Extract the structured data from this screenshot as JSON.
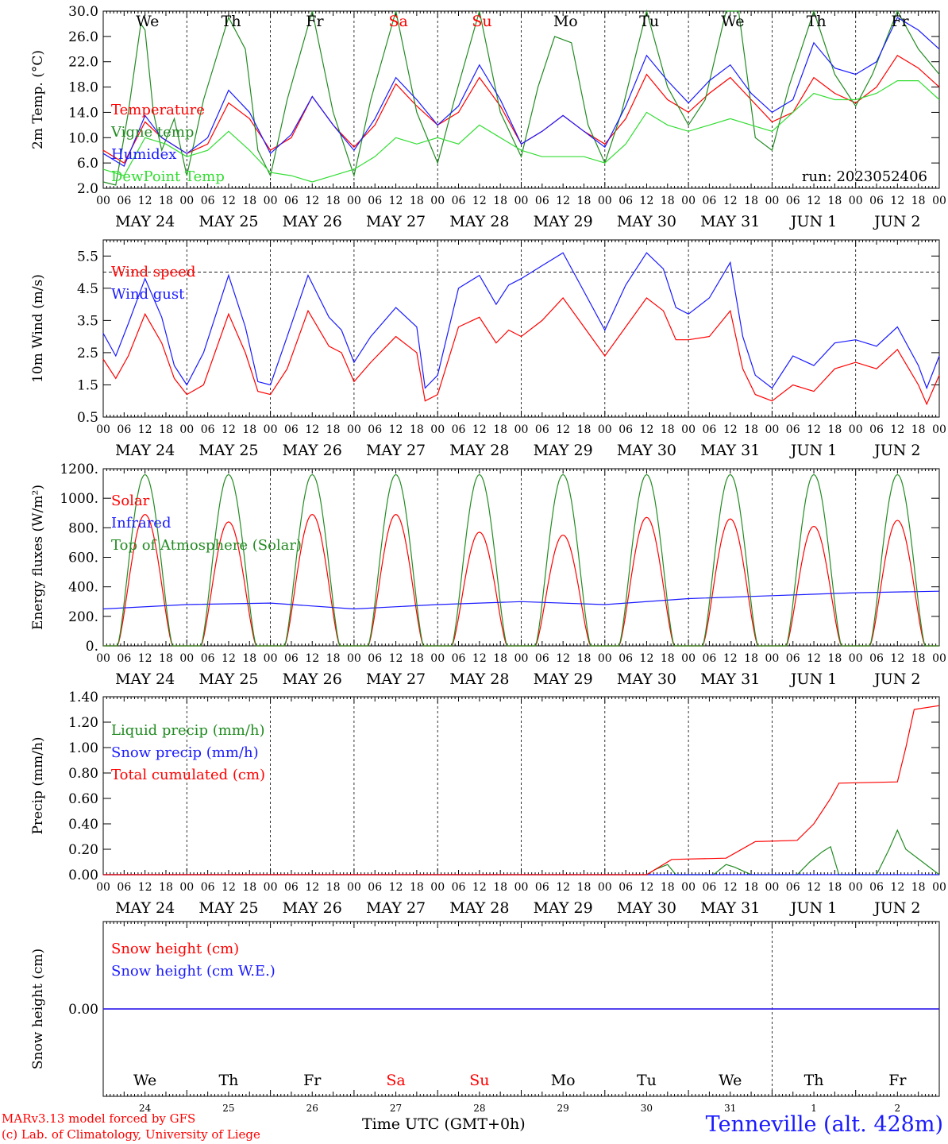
{
  "run_label": "run: 2023052406",
  "hour_ticks": [
    "00",
    "06",
    "12",
    "18"
  ],
  "dates": [
    "MAY 24",
    "MAY 25",
    "MAY 26",
    "MAY 27",
    "MAY 28",
    "MAY 29",
    "MAY 30",
    "MAY 31",
    "JUN  1",
    "JUN  2"
  ],
  "weekdays": [
    "We",
    "Th",
    "Fr",
    "Sa",
    "Su",
    "Mo",
    "Tu",
    "We",
    "Th",
    "Fr"
  ],
  "weekday_colors": [
    "#000000",
    "#000000",
    "#000000",
    "#ff0000",
    "#ff0000",
    "#000000",
    "#000000",
    "#000000",
    "#000000",
    "#000000"
  ],
  "day_numbers": [
    "24",
    "25",
    "26",
    "27",
    "28",
    "29",
    "30",
    "31",
    "1",
    "2"
  ],
  "colors": {
    "red": "#ff0000",
    "green": "#228b22",
    "blue": "#1a1aff",
    "lightgreen": "#33dd33",
    "purple": "#800080"
  },
  "footer": {
    "model_line1": "MARv3.13 model forced by GFS",
    "model_line2": "(c) Lab. of Climatology, University of Liege",
    "time_label": "Time UTC (GMT+0h)",
    "station": "Tenneville (alt. 428m)"
  },
  "chart_data": [
    {
      "type": "line",
      "ylabel": "2m Temp. (°C)",
      "ylim": [
        2,
        30
      ],
      "yticks": [
        "2.0",
        "6.0",
        "10.0",
        "14.0",
        "18.0",
        "22.0",
        "26.0",
        "30.0"
      ],
      "x_unit": "days since MAY 24 00 UTC",
      "series": [
        {
          "name": "Temperature",
          "color": "#ff0000",
          "x": [
            0,
            0.25,
            0.5,
            0.7,
            1,
            1.25,
            1.5,
            1.75,
            2,
            2.25,
            2.5,
            2.75,
            3,
            3.25,
            3.5,
            3.75,
            4,
            4.25,
            4.5,
            4.75,
            5,
            5.25,
            5.5,
            5.75,
            6,
            6.25,
            6.5,
            6.75,
            7,
            7.25,
            7.5,
            7.75,
            8,
            8.25,
            8.5,
            8.75,
            9,
            9.25,
            9.5,
            9.75,
            10
          ],
          "y": [
            8,
            6,
            12.5,
            10,
            7.5,
            9,
            15.5,
            13,
            8,
            10,
            16.5,
            12,
            8.5,
            12,
            18.5,
            15,
            12,
            14,
            19.5,
            15,
            9,
            11,
            13.5,
            11,
            9,
            13,
            20,
            16,
            14,
            17,
            19.5,
            16,
            12.5,
            14,
            19.5,
            17,
            15.5,
            18,
            23,
            21,
            18
          ]
        },
        {
          "name": "Vigne temp",
          "color": "#228b22",
          "x": [
            0,
            0.15,
            0.3,
            0.45,
            0.5,
            0.6,
            0.7,
            0.85,
            1,
            1.2,
            1.5,
            1.7,
            1.85,
            2,
            2.2,
            2.5,
            2.75,
            3,
            3.2,
            3.5,
            3.75,
            4,
            4.2,
            4.5,
            4.75,
            5,
            5.2,
            5.4,
            5.6,
            5.8,
            6,
            6.2,
            6.5,
            6.75,
            7,
            7.2,
            7.45,
            7.6,
            7.8,
            8,
            8.2,
            8.5,
            8.75,
            9,
            9.2,
            9.5,
            9.75,
            10
          ],
          "y": [
            3,
            2.5,
            14,
            28,
            27,
            14,
            8,
            13,
            4,
            16,
            29,
            24,
            8,
            4,
            16,
            30,
            14,
            4,
            16,
            30,
            14,
            6,
            16,
            30,
            14,
            7,
            18,
            26,
            25,
            12,
            6,
            14,
            30,
            18,
            12,
            16,
            30,
            30,
            10,
            8,
            18,
            30,
            20,
            15,
            20,
            30,
            24,
            20
          ]
        },
        {
          "name": "Humidex",
          "color": "#1a1aff",
          "x": [
            0,
            0.25,
            0.5,
            0.7,
            1,
            1.25,
            1.5,
            1.75,
            2,
            2.25,
            2.5,
            2.75,
            3,
            3.25,
            3.5,
            3.75,
            4,
            4.25,
            4.5,
            4.75,
            5,
            5.25,
            5.5,
            5.75,
            6,
            6.25,
            6.5,
            6.75,
            7,
            7.25,
            7.5,
            7.75,
            8,
            8.25,
            8.5,
            8.75,
            9,
            9.25,
            9.5,
            9.75,
            10
          ],
          "y": [
            7.5,
            5.5,
            13.5,
            10,
            7.5,
            10,
            17.5,
            14,
            7.5,
            10.5,
            16.5,
            12,
            8,
            13,
            19.5,
            16,
            12,
            15,
            21.5,
            16,
            9,
            11,
            13.5,
            11,
            8.5,
            15,
            23,
            19,
            15.5,
            19,
            21.5,
            17,
            14,
            16,
            25,
            21,
            20,
            22,
            29,
            27,
            24
          ]
        },
        {
          "name": "DewPoint Temp",
          "color": "#33dd33",
          "x": [
            0,
            0.25,
            0.5,
            0.75,
            1,
            1.25,
            1.5,
            1.75,
            2,
            2.25,
            2.5,
            2.75,
            3,
            3.25,
            3.5,
            3.75,
            4,
            4.25,
            4.5,
            4.75,
            5,
            5.25,
            5.5,
            5.75,
            6,
            6.25,
            6.5,
            6.75,
            7,
            7.25,
            7.5,
            7.75,
            8,
            8.25,
            8.5,
            8.75,
            9,
            9.25,
            9.5,
            9.75,
            10
          ],
          "y": [
            5,
            4,
            10,
            9,
            7,
            8,
            11,
            8,
            4.5,
            4,
            3,
            4,
            5,
            7,
            10,
            9,
            10,
            9,
            12,
            10,
            8,
            7,
            7,
            7,
            6,
            9,
            14,
            12,
            11,
            12,
            13,
            12,
            11,
            14,
            17,
            16,
            16,
            17,
            19,
            19,
            16
          ]
        }
      ]
    },
    {
      "type": "line",
      "ylabel": "10m Wind (m/s)",
      "ylim": [
        0.5,
        6
      ],
      "yticks": [
        "0.5",
        "1.5",
        "2.5",
        "3.5",
        "4.5",
        "5.5"
      ],
      "reference_line": 5,
      "series": [
        {
          "name": "Wind speed",
          "color": "#ff0000",
          "x": [
            0,
            0.15,
            0.3,
            0.5,
            0.7,
            0.85,
            1,
            1.2,
            1.5,
            1.7,
            1.85,
            2,
            2.2,
            2.45,
            2.7,
            2.85,
            3,
            3.2,
            3.5,
            3.75,
            3.85,
            4,
            4.25,
            4.5,
            4.7,
            4.85,
            5,
            5.25,
            5.5,
            5.75,
            6,
            6.25,
            6.5,
            6.7,
            6.85,
            7,
            7.25,
            7.5,
            7.65,
            7.8,
            8,
            8.25,
            8.5,
            8.75,
            9,
            9.25,
            9.5,
            9.75,
            9.85,
            10
          ],
          "y": [
            2.3,
            1.7,
            2.4,
            3.7,
            2.8,
            1.7,
            1.2,
            1.5,
            3.7,
            2.5,
            1.3,
            1.2,
            2.0,
            3.8,
            2.7,
            2.5,
            1.6,
            2.2,
            3.0,
            2.5,
            1.0,
            1.2,
            3.3,
            3.6,
            2.8,
            3.2,
            3.0,
            3.5,
            4.2,
            3.3,
            2.4,
            3.3,
            4.2,
            3.8,
            2.9,
            2.9,
            3.0,
            3.8,
            2.0,
            1.2,
            1.0,
            1.5,
            1.3,
            2.0,
            2.2,
            2.0,
            2.6,
            1.5,
            0.9,
            1.8
          ]
        },
        {
          "name": "Wind gust",
          "color": "#1a1aff",
          "x": [
            0,
            0.15,
            0.3,
            0.5,
            0.7,
            0.85,
            1,
            1.2,
            1.5,
            1.7,
            1.85,
            2,
            2.2,
            2.45,
            2.7,
            2.85,
            3,
            3.2,
            3.5,
            3.75,
            3.85,
            4,
            4.25,
            4.5,
            4.7,
            4.85,
            5,
            5.25,
            5.5,
            5.75,
            6,
            6.25,
            6.5,
            6.7,
            6.85,
            7,
            7.25,
            7.5,
            7.65,
            7.8,
            8,
            8.25,
            8.5,
            8.75,
            9,
            9.25,
            9.5,
            9.75,
            9.85,
            10
          ],
          "y": [
            3.1,
            2.4,
            3.4,
            4.8,
            3.6,
            2.1,
            1.5,
            2.5,
            4.9,
            3.3,
            1.6,
            1.5,
            3.0,
            4.9,
            3.6,
            3.2,
            2.2,
            3.0,
            3.9,
            3.3,
            1.4,
            1.8,
            4.5,
            4.9,
            4.0,
            4.6,
            4.8,
            5.2,
            5.6,
            4.4,
            3.2,
            4.6,
            5.6,
            5.1,
            3.9,
            3.7,
            4.2,
            5.3,
            3.0,
            1.8,
            1.4,
            2.4,
            2.1,
            2.8,
            2.9,
            2.7,
            3.3,
            2.1,
            1.4,
            2.4
          ]
        }
      ]
    },
    {
      "type": "line",
      "ylabel": "Energy fluxes (W/m²)",
      "ylim": [
        0,
        1200
      ],
      "yticks": [
        "0.",
        "200.",
        "400.",
        "600.",
        "800.",
        "1000.",
        "1200."
      ],
      "series": [
        {
          "name": "Solar",
          "color": "#ff0000",
          "peaks": [
            890,
            840,
            890,
            890,
            770,
            750,
            870,
            860,
            810,
            850
          ]
        },
        {
          "name": "Infrared",
          "color": "#1a1aff",
          "x": [
            0,
            1,
            2,
            3,
            4,
            5,
            6,
            7,
            8,
            9,
            10
          ],
          "y": [
            250,
            280,
            290,
            250,
            280,
            300,
            280,
            320,
            340,
            360,
            370
          ]
        },
        {
          "name": "Top of Atmosphere (Solar)",
          "color": "#228b22",
          "peaks": [
            1160,
            1160,
            1160,
            1160,
            1160,
            1160,
            1160,
            1160,
            1160,
            1160
          ]
        }
      ]
    },
    {
      "type": "line",
      "ylabel": "Precip (mm/h)",
      "ylim": [
        0,
        1.4
      ],
      "yticks": [
        "0.00",
        "0.20",
        "0.40",
        "0.60",
        "0.80",
        "1.00",
        "1.20",
        "1.40"
      ],
      "series": [
        {
          "name": "Liquid precip (mm/h)",
          "color": "#228b22",
          "x": [
            0,
            6.5,
            6.6,
            6.75,
            6.85,
            7,
            7.3,
            7.45,
            7.55,
            7.65,
            7.75,
            8,
            8.3,
            8.45,
            8.6,
            8.7,
            8.8,
            9.1,
            9.25,
            9.4,
            9.5,
            9.6,
            10
          ],
          "y": [
            0,
            0,
            0.04,
            0.08,
            0,
            0,
            0,
            0.08,
            0.06,
            0.03,
            0,
            0,
            0,
            0.1,
            0.18,
            0.22,
            0,
            0,
            0,
            0.2,
            0.35,
            0.2,
            0
          ]
        },
        {
          "name": "Snow precip (mm/h)",
          "color": "#1a1aff",
          "x": [
            0,
            10
          ],
          "y": [
            0,
            0
          ]
        },
        {
          "name": "Total cumulated (cm)",
          "color": "#ff0000",
          "x": [
            0,
            6.5,
            6.8,
            7.45,
            7.8,
            8.3,
            8.5,
            8.7,
            8.8,
            9.5,
            9.6,
            9.7,
            10
          ],
          "y": [
            0,
            0,
            0.12,
            0.13,
            0.26,
            0.27,
            0.4,
            0.6,
            0.72,
            0.73,
            1.0,
            1.3,
            1.33
          ]
        }
      ]
    },
    {
      "type": "line",
      "ylabel": "Snow height (cm)",
      "ylim": [
        -1,
        1
      ],
      "yticks": [
        "0.00"
      ],
      "series": [
        {
          "name": "Snow height (cm)",
          "color": "#ff0000",
          "x": [
            0,
            10
          ],
          "y": [
            0,
            0
          ]
        },
        {
          "name": "Snow height (cm W.E.)",
          "color": "#1a1aff",
          "x": [
            0,
            10
          ],
          "y": [
            0,
            0
          ]
        }
      ]
    }
  ]
}
